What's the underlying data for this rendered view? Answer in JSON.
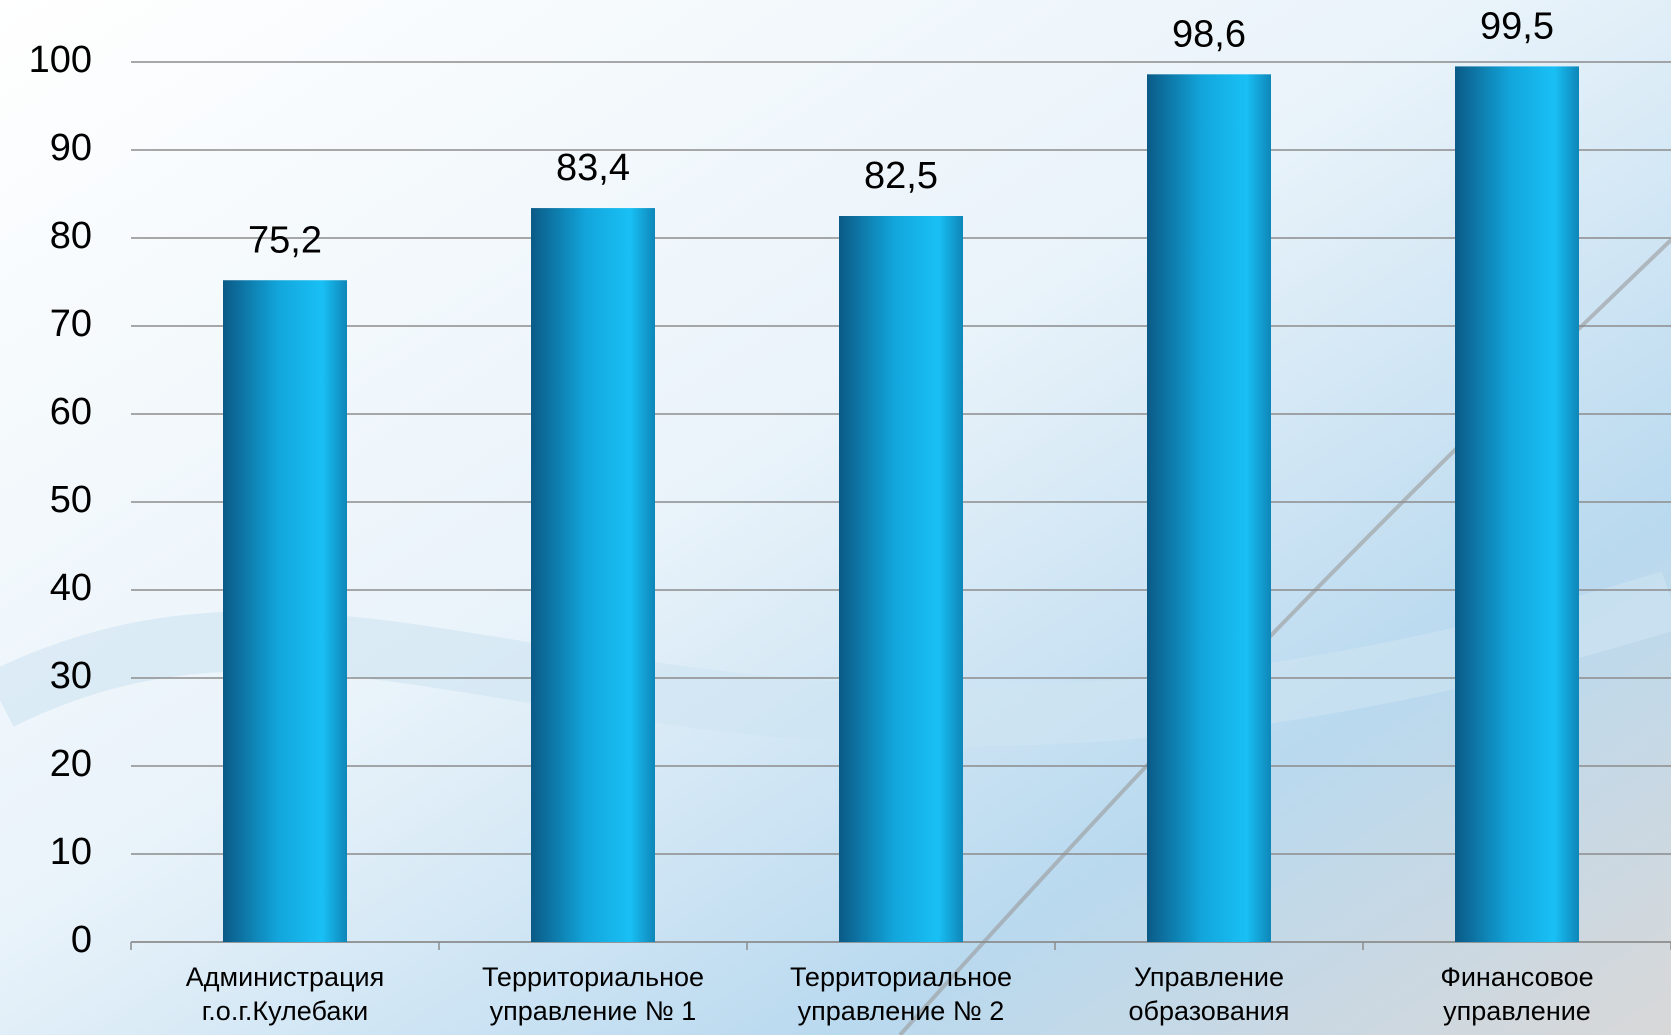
{
  "chart_data": {
    "type": "bar",
    "categories": [
      [
        "Администрация",
        "г.о.г.Кулебаки"
      ],
      [
        "Территориальное",
        "управление № 1"
      ],
      [
        "Территориальное",
        "управление № 2"
      ],
      [
        "Управление",
        "образования"
      ],
      [
        "Финансовое",
        "управление"
      ]
    ],
    "values": [
      75.2,
      83.4,
      82.5,
      98.6,
      99.5
    ],
    "value_labels": [
      "75,2",
      "83,4",
      "82,5",
      "98,6",
      "99,5"
    ],
    "color": "#12a6dc",
    "ylim": [
      0,
      100
    ],
    "yticks": [
      0,
      10,
      20,
      30,
      40,
      50,
      60,
      70,
      80,
      90,
      100
    ],
    "grid": true
  }
}
